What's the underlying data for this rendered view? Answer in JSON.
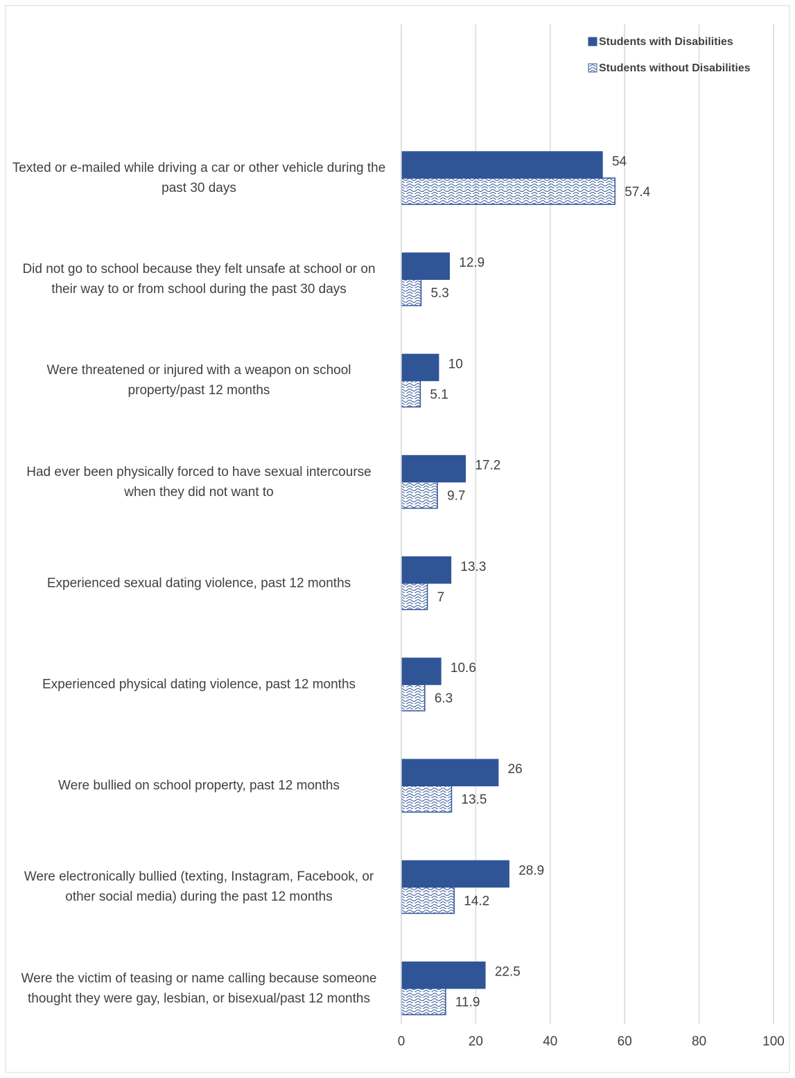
{
  "chart_data": {
    "type": "bar",
    "orientation": "horizontal",
    "categories": [
      "Texted or e-mailed while driving a car or other vehicle during the past 30 days",
      "Did not go to school because they felt unsafe at school or on their way to or from school during the past 30 days",
      "Were threatened or injured with a weapon on school property/past 12 months",
      "Had ever been physically forced to have sexual intercourse when they did not want to",
      "Experienced sexual dating violence, past 12 months",
      "Experienced physical dating violence, past 12 months",
      "Were bullied on school property, past 12 months",
      "Were electronically bullied (texting, Instagram, Facebook, or other social media) during the past 12 months",
      "Were the victim of teasing or name calling because someone thought they were gay, lesbian, or bisexual/past 12 months"
    ],
    "series": [
      {
        "name": "Students with Disabilities",
        "color": "#2f5597",
        "pattern": "solid",
        "values": [
          54,
          12.9,
          10,
          17.2,
          13.3,
          10.6,
          26,
          28.9,
          22.5
        ]
      },
      {
        "name": "Students without Disabilities",
        "color": "#2f5597",
        "pattern": "wave",
        "values": [
          57.4,
          5.3,
          5.1,
          9.7,
          7,
          6.3,
          13.5,
          14.2,
          11.9
        ]
      }
    ],
    "xlim": [
      0,
      100
    ],
    "xticks": [
      0,
      20,
      40,
      60,
      80,
      100
    ],
    "grid": true,
    "legend": "top-right"
  }
}
